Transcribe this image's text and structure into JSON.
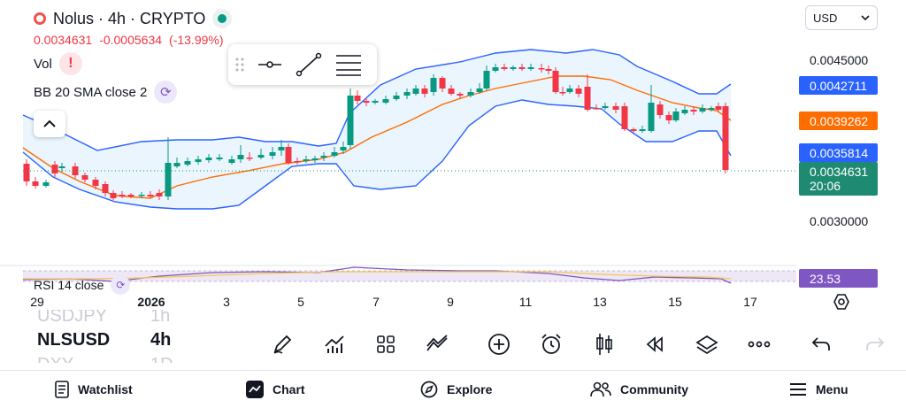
{
  "header": {
    "symbol_title": "Nolus · 4h · CRYPTO"
  },
  "quote": {
    "last": "0.0034631",
    "change": "-0.0005634",
    "change_pct": "(-13.99%)"
  },
  "indicators": {
    "vol_label": "Vol",
    "bb_label": "BB 20 SMA close 2",
    "rsi_label": "RSI 14 close"
  },
  "currency": {
    "value": "USD"
  },
  "price_axis": {
    "labels": [
      "0.0045000",
      "0.0030000"
    ]
  },
  "price_tags": {
    "bb_upper": "0.0042711",
    "bb_basis": "0.0039262",
    "bb_lower": "0.0035814",
    "last_price": "0.0034631",
    "countdown": "20:06",
    "rsi_value": "23.53"
  },
  "tag_colors": {
    "bb_upper": "#2962ff",
    "bb_basis": "#ff6d00",
    "bb_lower": "#2962ff",
    "last_price": "#1e8a72",
    "rsi": "#7e57c2"
  },
  "time_axis": {
    "labels": [
      "29",
      "2026",
      "3",
      "5",
      "7",
      "9",
      "11",
      "13",
      "15",
      "17"
    ]
  },
  "symbols": {
    "prev": "USDJPY",
    "prev_tf": "1h",
    "current": "NLSUSD",
    "current_tf": "4h",
    "next": "DXY",
    "next_tf": "1D"
  },
  "toolbar_icons": [
    "pencil-icon",
    "indicators-icon",
    "templates-icon",
    "compare-icon",
    "add-icon",
    "alert-icon",
    "chart-type-icon",
    "replay-icon",
    "layers-icon",
    "more-icon",
    "undo-icon",
    "redo-icon"
  ],
  "nav": {
    "watchlist": "Watchlist",
    "chart": "Chart",
    "explore": "Explore",
    "community": "Community",
    "menu": "Menu"
  }
}
